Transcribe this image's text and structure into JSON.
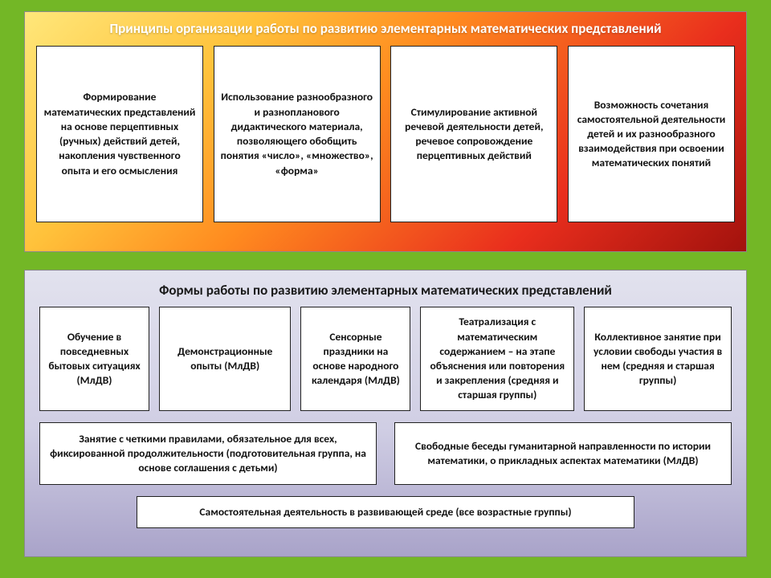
{
  "top": {
    "title": "Принципы организации работы по развитию элементарных математических представлений",
    "cards": [
      "Формирование математических представлений на основе перцептивных (ручных) действий детей, накопления чувственного опыта и его осмысления",
      "Использование разнообразного и разнопланового дидактического материала, позволяющего обобщить понятия «число», «множество», «форма»",
      "Стимулирование активной речевой деятельности детей, речевое сопровождение перцептивных действий",
      "Возможность сочетания самостоятельной деятельности детей и их разнообразного взаимодействия при освоении математических понятий"
    ]
  },
  "bottom": {
    "title": "Формы работы по развитию элементарных математических представлений",
    "row1": [
      "Обучение в повседневных бытовых ситуациях (МлДВ)",
      "Демонстрационные опыты (МлДВ)",
      "Сенсорные праздники на основе народного календаря (МлДВ)",
      "Театрализация с математическим содержанием – на этапе объяснения или повторения и закрепления (средняя и старшая группы)",
      "Коллективное занятие при условии свободы участия в нем (средняя и старшая группы)"
    ],
    "row2": [
      "Занятие с четкими правилами, обязательное для всех, фиксированной продолжительности (подготовительная группа, на основе соглашения с детьми)",
      "Свободные беседы гуманитарной направленности по истории математики, о прикладных аспектах математики (МлДВ)"
    ],
    "row3": [
      "Самостоятельная деятельность в развивающей среде (все возрастные группы)"
    ]
  },
  "style": {
    "page_bg": "#73b726",
    "top_gradient": [
      "#ffe77a",
      "#ffc23b",
      "#ff8b1f",
      "#e92e1d",
      "#a2120d"
    ],
    "bottom_gradient": [
      "#e2e2ee",
      "#d0cee4",
      "#a9a3c9"
    ],
    "card_bg": "#ffffff",
    "card_border": "#222222",
    "title_top_color": "#ffffff",
    "title_bottom_color": "#1a1a1a",
    "font_size_title": 17,
    "font_size_card": 13.5
  }
}
